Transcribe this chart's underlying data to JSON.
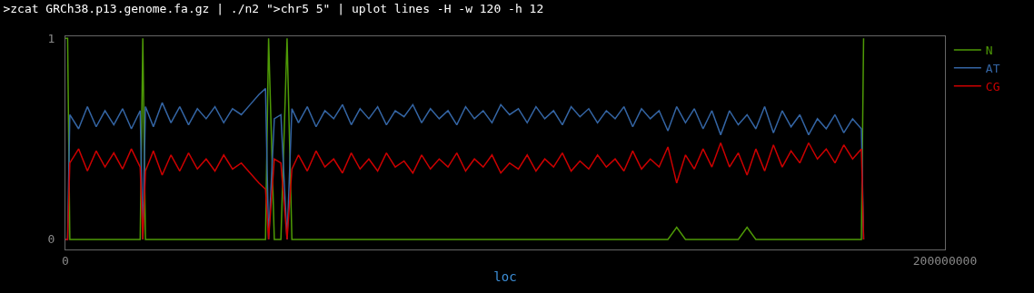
{
  "chart_data": {
    "type": "line",
    "title": ">zcat GRCh38.p13.genome.fa.gz | ./n2 \">chr5 5\" | uplot lines -H -w 120 -h 12",
    "xlabel": "loc",
    "x": [
      0,
      500000,
      1000000,
      3000000,
      5000000,
      7000000,
      9000000,
      11000000,
      13000000,
      15000000,
      17000000,
      17600000,
      18200000,
      20000000,
      22000000,
      24000000,
      26000000,
      28000000,
      30000000,
      32000000,
      34000000,
      36000000,
      38000000,
      40000000,
      42000000,
      44000000,
      45500000,
      46200000,
      47500000,
      49000000,
      50400000,
      51500000,
      53000000,
      55000000,
      57000000,
      59000000,
      61000000,
      63000000,
      65000000,
      67000000,
      69000000,
      71000000,
      73000000,
      75000000,
      77000000,
      79000000,
      81000000,
      83000000,
      85000000,
      87000000,
      89000000,
      91000000,
      93000000,
      95000000,
      97000000,
      99000000,
      101000000,
      103000000,
      105000000,
      107000000,
      109000000,
      111000000,
      113000000,
      115000000,
      117000000,
      119000000,
      121000000,
      123000000,
      125000000,
      127000000,
      129000000,
      131000000,
      133000000,
      135000000,
      137000000,
      139000000,
      141000000,
      143000000,
      145000000,
      147000000,
      149000000,
      151000000,
      153000000,
      155000000,
      157000000,
      159000000,
      161000000,
      163000000,
      165000000,
      167000000,
      169000000,
      171000000,
      173000000,
      175000000,
      177000000,
      179000000,
      181000000,
      181500000
    ],
    "series": [
      {
        "name": "N",
        "color": "#4e9a06",
        "values": [
          1,
          1,
          0,
          0,
          0,
          0,
          0,
          0,
          0,
          0,
          0,
          1,
          0,
          0,
          0,
          0,
          0,
          0,
          0,
          0,
          0,
          0,
          0,
          0,
          0,
          0,
          0,
          1,
          0,
          0,
          1,
          0,
          0,
          0,
          0,
          0,
          0,
          0,
          0,
          0,
          0,
          0,
          0,
          0,
          0,
          0,
          0,
          0,
          0,
          0,
          0,
          0,
          0,
          0,
          0,
          0,
          0,
          0,
          0,
          0,
          0,
          0,
          0,
          0,
          0,
          0,
          0,
          0,
          0,
          0,
          0,
          0,
          0,
          0,
          0,
          0.06,
          0,
          0,
          0,
          0,
          0,
          0,
          0,
          0.06,
          0,
          0,
          0,
          0,
          0,
          0,
          0,
          0,
          0,
          0,
          0,
          0,
          0,
          1
        ]
      },
      {
        "name": "AT",
        "color": "#3465a4",
        "values": [
          0,
          0,
          0.62,
          0.55,
          0.66,
          0.56,
          0.64,
          0.57,
          0.65,
          0.55,
          0.64,
          0,
          0.66,
          0.56,
          0.68,
          0.58,
          0.66,
          0.57,
          0.65,
          0.6,
          0.66,
          0.58,
          0.65,
          0.62,
          0.67,
          0.72,
          0.75,
          0,
          0.6,
          0.62,
          0,
          0.65,
          0.58,
          0.66,
          0.56,
          0.64,
          0.6,
          0.67,
          0.57,
          0.65,
          0.6,
          0.66,
          0.57,
          0.64,
          0.61,
          0.67,
          0.58,
          0.65,
          0.6,
          0.64,
          0.57,
          0.66,
          0.6,
          0.64,
          0.58,
          0.67,
          0.62,
          0.65,
          0.58,
          0.66,
          0.6,
          0.64,
          0.57,
          0.66,
          0.61,
          0.65,
          0.58,
          0.64,
          0.6,
          0.66,
          0.56,
          0.65,
          0.6,
          0.64,
          0.54,
          0.66,
          0.58,
          0.65,
          0.55,
          0.64,
          0.52,
          0.64,
          0.57,
          0.62,
          0.55,
          0.66,
          0.53,
          0.64,
          0.56,
          0.62,
          0.52,
          0.6,
          0.55,
          0.62,
          0.53,
          0.6,
          0.55,
          0
        ]
      },
      {
        "name": "CG",
        "color": "#cc0000",
        "values": [
          0,
          0,
          0.38,
          0.45,
          0.34,
          0.44,
          0.36,
          0.43,
          0.35,
          0.45,
          0.36,
          0,
          0.34,
          0.44,
          0.32,
          0.42,
          0.34,
          0.43,
          0.35,
          0.4,
          0.34,
          0.42,
          0.35,
          0.38,
          0.33,
          0.28,
          0.25,
          0,
          0.4,
          0.38,
          0,
          0.35,
          0.42,
          0.34,
          0.44,
          0.36,
          0.4,
          0.33,
          0.43,
          0.35,
          0.4,
          0.34,
          0.43,
          0.36,
          0.39,
          0.33,
          0.42,
          0.35,
          0.4,
          0.36,
          0.43,
          0.34,
          0.4,
          0.36,
          0.42,
          0.33,
          0.38,
          0.35,
          0.42,
          0.34,
          0.4,
          0.36,
          0.43,
          0.34,
          0.39,
          0.35,
          0.42,
          0.36,
          0.4,
          0.34,
          0.44,
          0.35,
          0.4,
          0.36,
          0.46,
          0.28,
          0.42,
          0.35,
          0.45,
          0.36,
          0.48,
          0.36,
          0.43,
          0.32,
          0.45,
          0.34,
          0.47,
          0.36,
          0.44,
          0.38,
          0.48,
          0.4,
          0.45,
          0.38,
          0.47,
          0.4,
          0.45,
          0
        ]
      }
    ],
    "xlim": [
      0,
      200000000
    ],
    "xticks": [
      0,
      200000000
    ],
    "ylim": [
      -0.05,
      1.01
    ],
    "yticks": [
      0,
      1
    ],
    "legend": "top right",
    "marker": "none",
    "line_style": "solid"
  }
}
